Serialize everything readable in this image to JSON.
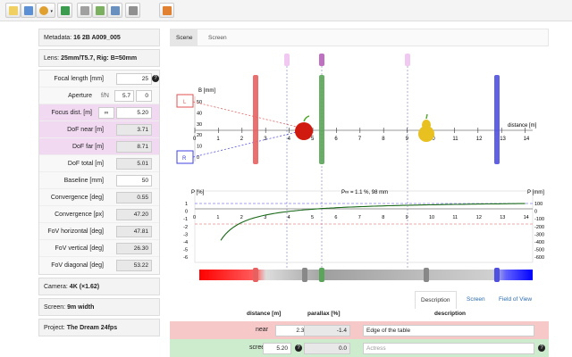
{
  "toolbar": {
    "buttons": [
      {
        "name": "new-icon",
        "color": "#f0d060"
      },
      {
        "name": "open-icon",
        "color": "#5b8fd6"
      },
      {
        "name": "recent-icon",
        "color": "#e0a030"
      },
      {
        "name": "google-icon",
        "color": "#3b9b4e"
      },
      {
        "name": "eject-icon",
        "color": "#a0a0a0"
      },
      {
        "name": "upload-icon",
        "color": "#7ab060"
      },
      {
        "name": "move-icon",
        "color": "#6a90c0"
      },
      {
        "name": "tools-icon",
        "color": "#909090"
      },
      {
        "name": "grid-icon",
        "color": "#e08030"
      }
    ]
  },
  "metadata": {
    "label": "Metadata:",
    "value": "16 2B A009_005"
  },
  "lens": {
    "label": "Lens:",
    "value": "25mm/T5.7, Rig: B=50mm"
  },
  "params": {
    "focal_length": {
      "label": "Focal length [mm]",
      "value": "25"
    },
    "aperture": {
      "label": "Aperture",
      "unit": "f/N",
      "value1": "5.7",
      "value2": "0"
    },
    "focus_dist": {
      "label": "Focus dist. [m]",
      "unit": "∞",
      "value": "5.20"
    },
    "dof_near": {
      "label": "DoF near [m]",
      "value": "3.71"
    },
    "dof_far": {
      "label": "DoF far [m]",
      "value": "8.71"
    },
    "dof_total": {
      "label": "DoF total [m]",
      "value": "5.01"
    },
    "baseline": {
      "label": "Baseline [mm]",
      "value": "50"
    },
    "convergence_deg": {
      "label": "Convergence [deg]",
      "value": "0.55"
    },
    "convergence_px": {
      "label": "Convergence [px]",
      "value": "47.20"
    },
    "fov_h": {
      "label": "FoV horizontal [deg]",
      "value": "47.81"
    },
    "fov_v": {
      "label": "FoV vertical [deg]",
      "value": "26.30"
    },
    "fov_d": {
      "label": "FoV diagonal [deg]",
      "value": "53.22"
    },
    "help": "?"
  },
  "camera": {
    "label": "Camera:",
    "value": "4K (×1.62)"
  },
  "screen_panel": {
    "label": "Screen:",
    "value": "9m width"
  },
  "project": {
    "label": "Project:",
    "value": "The Dream 24fps"
  },
  "top_tabs": [
    "Scene",
    "Screen"
  ],
  "scene": {
    "b_axis_label": "B [mm]",
    "b_ticks": [
      "50",
      "40",
      "30",
      "20",
      "10",
      "0"
    ],
    "distance_label": "distance [m]",
    "distance_ticks": [
      "0",
      "1",
      "2",
      "3",
      "4",
      "5",
      "6",
      "7",
      "8",
      "9",
      "10",
      "11",
      "12",
      "13",
      "14"
    ],
    "left_cam": "L",
    "right_cam": "R",
    "colors": {
      "near": "#e05050",
      "screen": "#3a9a3a",
      "far": "#4040e0",
      "focus": "#c070c0"
    }
  },
  "parallax": {
    "p_left_label": "P [%]",
    "p_right_label": "P [mm]",
    "inf_label": "P∞ = 1.1 %, 98 mm",
    "left_ticks": [
      "1",
      "0",
      "-1",
      "-2",
      "-3",
      "-4",
      "-5",
      "-6"
    ],
    "right_ticks": [
      "100",
      "0",
      "-100",
      "-200",
      "-300",
      "-400",
      "-500",
      "-600"
    ],
    "x_ticks": [
      "0",
      "1",
      "2",
      "3",
      "4",
      "5",
      "6",
      "7",
      "8",
      "9",
      "10",
      "11",
      "12",
      "13",
      "14"
    ]
  },
  "bottom_tabs": [
    "Description",
    "Screen",
    "Field of View"
  ],
  "table": {
    "headers": {
      "distance": "distance [m]",
      "parallax": "parallax [%]",
      "description": "description"
    },
    "rows": [
      {
        "name": "near",
        "distance": "2.30",
        "parallax": "-1.4",
        "description": "Edge of the table"
      },
      {
        "name": "screen",
        "distance": "5.20",
        "parallax": "0.0",
        "description": "Actress"
      }
    ],
    "help": "?"
  }
}
